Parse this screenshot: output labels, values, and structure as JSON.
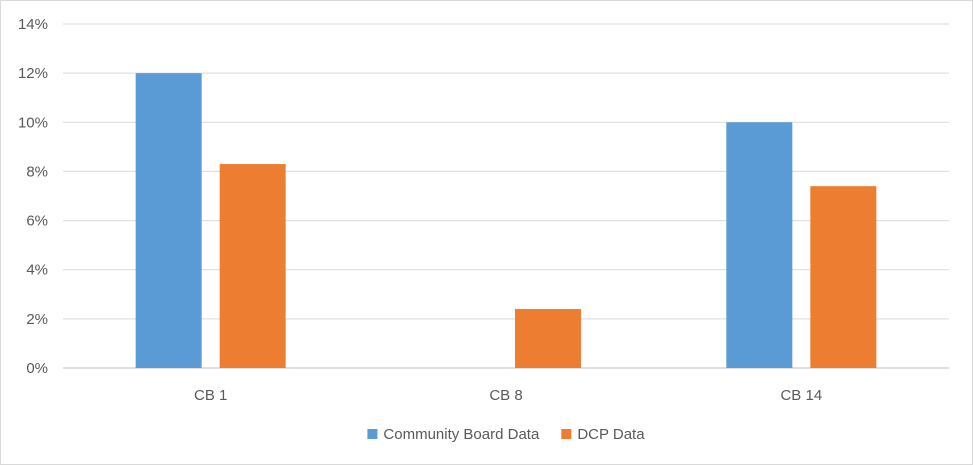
{
  "chart_data": {
    "type": "bar",
    "categories": [
      "CB 1",
      "CB 8",
      "CB 14"
    ],
    "series": [
      {
        "name": "Community Board Data",
        "color": "#5b9bd5",
        "values": [
          12,
          0,
          10
        ]
      },
      {
        "name": "DCP Data",
        "color": "#ed7d31",
        "values": [
          8.3,
          2.4,
          7.4
        ]
      }
    ],
    "y_ticks": [
      "0%",
      "2%",
      "4%",
      "6%",
      "8%",
      "10%",
      "12%",
      "14%"
    ],
    "ylim": [
      0,
      14
    ],
    "grid": true,
    "legend_position": "bottom",
    "title": "",
    "xlabel": "",
    "ylabel": ""
  }
}
